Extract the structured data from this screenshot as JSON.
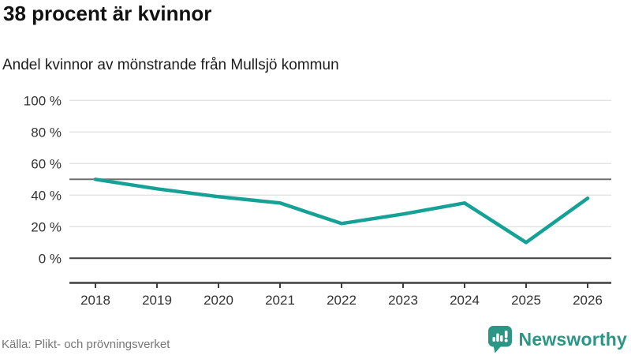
{
  "header": {
    "title": "38 procent är kvinnor",
    "subtitle": "Andel kvinnor av mönstrande från Mullsjö kommun"
  },
  "chart_data": {
    "type": "line",
    "title": "38 procent är kvinnor",
    "subtitle": "Andel kvinnor av mönstrande från Mullsjö kommun",
    "categories": [
      "2018",
      "2019",
      "2020",
      "2021",
      "2022",
      "2023",
      "2024",
      "2025",
      "2026"
    ],
    "series": [
      {
        "name": "Andel kvinnor av mönstrande",
        "values": [
          50,
          44,
          39,
          35,
          22,
          28,
          35,
          10,
          38
        ]
      }
    ],
    "unit": "%",
    "ylim": [
      0,
      100
    ],
    "yticks": {
      "values": [
        100,
        80,
        60,
        40,
        20,
        0
      ],
      "labels": [
        "100 %",
        "80 %",
        "60 %",
        "40 %",
        "20 %",
        "0 %"
      ]
    },
    "reference_line": {
      "value": 50
    },
    "grid": true,
    "legend": false,
    "colors": {
      "line": "#15a195",
      "grid": "#e3e3e3",
      "reference_line": "#6f6f6f",
      "zero_line": "#3f3f3f",
      "axis": "#3f3f3f",
      "tick_label": "#333333"
    }
  },
  "footer": {
    "source": "Källa: Plikt- och prövningsverket",
    "logo_text": "Newsworthy",
    "logo_color": "#2c9685"
  }
}
